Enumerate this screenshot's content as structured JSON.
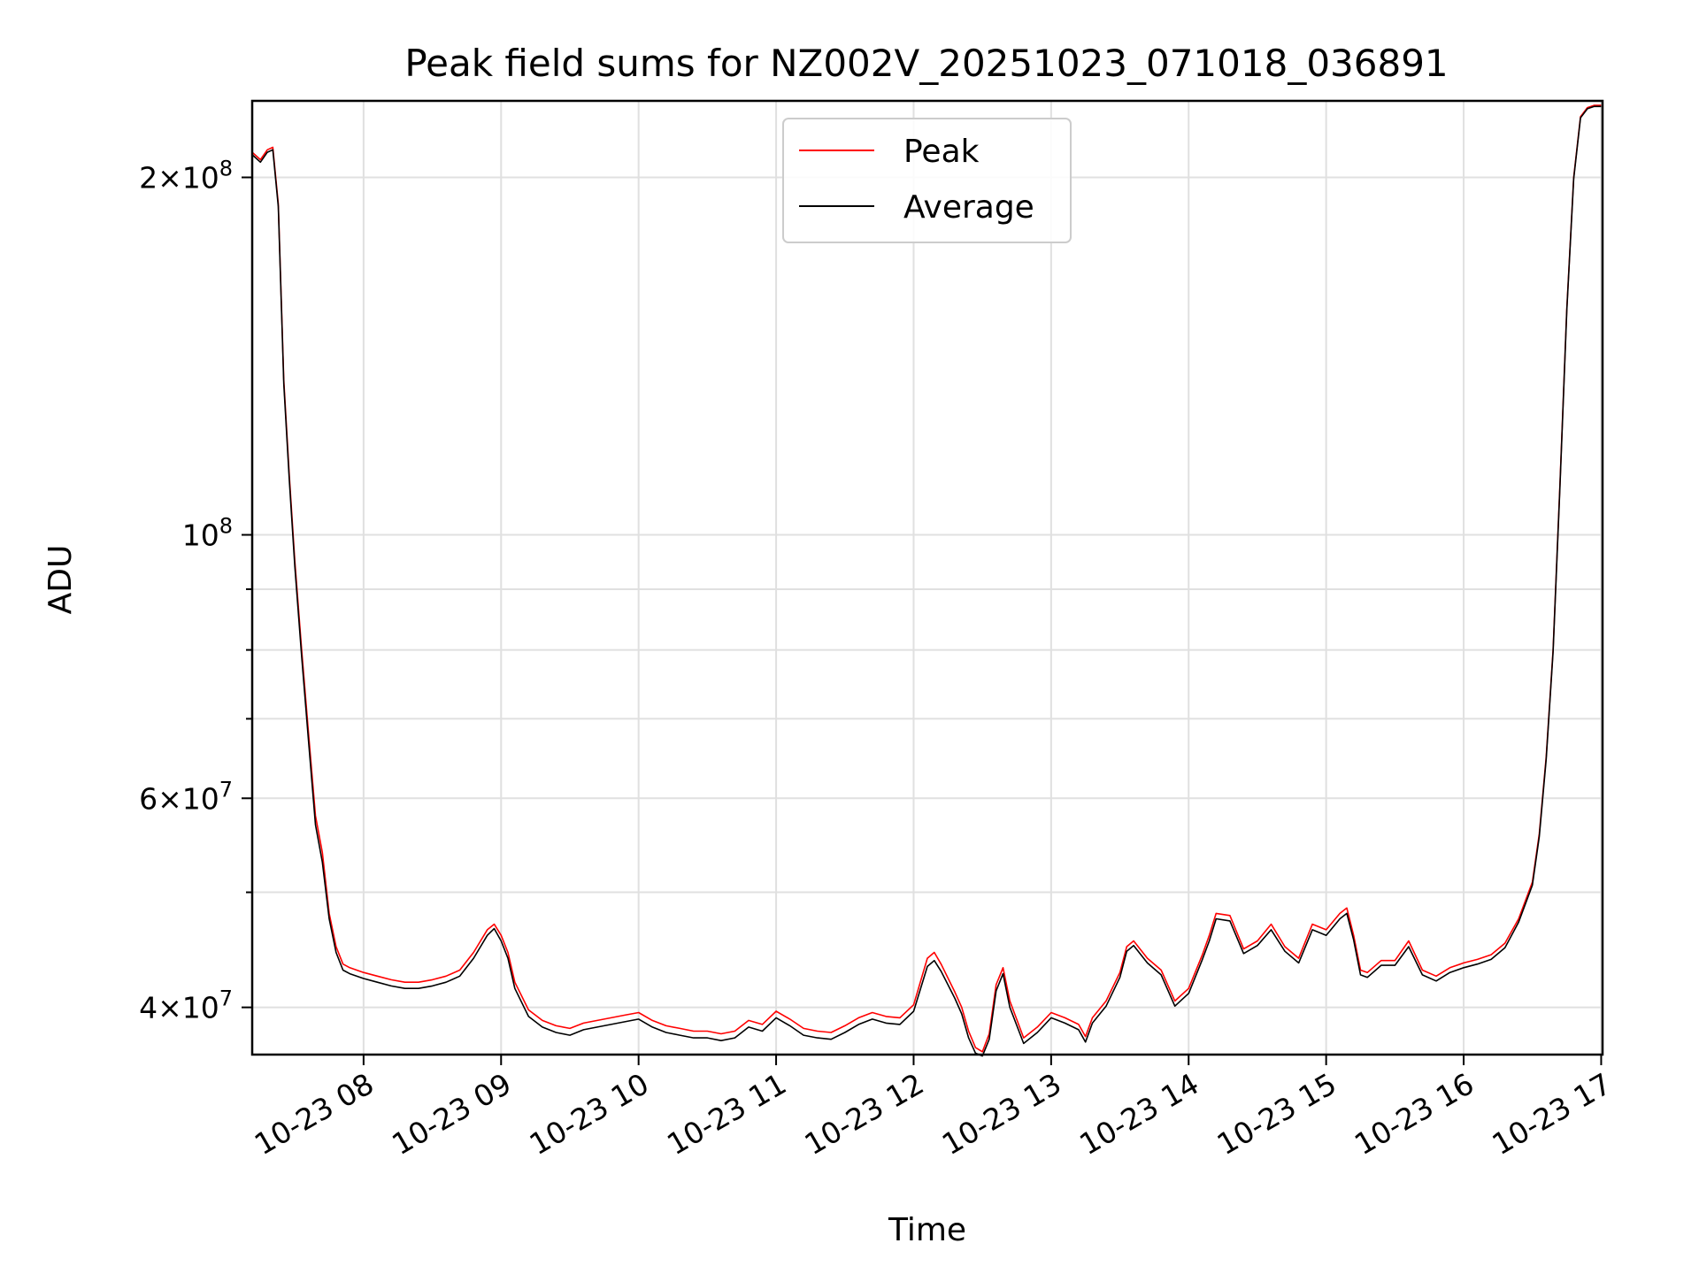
{
  "chart_data": {
    "type": "line",
    "title": "Peak field sums for NZ002V_20251023_071018_036891",
    "xlabel": "Time",
    "ylabel": "ADU",
    "yscale": "log",
    "grid": true,
    "legend_position": "upper-center",
    "xlim": [
      7.19,
      17.01
    ],
    "ylim": [
      36500000,
      232000000
    ],
    "x_ticks": [
      {
        "value": 8,
        "label": "10-23 08"
      },
      {
        "value": 9,
        "label": "10-23 09"
      },
      {
        "value": 10,
        "label": "10-23 10"
      },
      {
        "value": 11,
        "label": "10-23 11"
      },
      {
        "value": 12,
        "label": "10-23 12"
      },
      {
        "value": 13,
        "label": "10-23 13"
      },
      {
        "value": 14,
        "label": "10-23 14"
      },
      {
        "value": 15,
        "label": "10-23 15"
      },
      {
        "value": 16,
        "label": "10-23 16"
      },
      {
        "value": 17,
        "label": "10-23 17"
      }
    ],
    "y_major_ticks": [
      {
        "value": 40000000,
        "mant": "4×10",
        "exp": "7"
      },
      {
        "value": 60000000,
        "mant": "6×10",
        "exp": "7"
      },
      {
        "value": 100000000,
        "mant": "10",
        "exp": "8"
      },
      {
        "value": 200000000,
        "mant": "2×10",
        "exp": "8"
      }
    ],
    "y_minor_ticks": [
      50000000,
      70000000,
      80000000,
      90000000
    ],
    "series": [
      {
        "name": "Peak",
        "color": "#ff0000",
        "x": [
          7.19,
          7.25,
          7.3,
          7.34,
          7.38,
          7.42,
          7.46,
          7.5,
          7.55,
          7.6,
          7.65,
          7.7,
          7.75,
          7.8,
          7.85,
          7.9,
          8.0,
          8.1,
          8.2,
          8.3,
          8.4,
          8.5,
          8.6,
          8.7,
          8.8,
          8.9,
          8.95,
          9.0,
          9.05,
          9.1,
          9.2,
          9.3,
          9.4,
          9.5,
          9.6,
          9.7,
          9.8,
          9.9,
          10.0,
          10.1,
          10.2,
          10.3,
          10.4,
          10.5,
          10.6,
          10.7,
          10.8,
          10.9,
          11.0,
          11.1,
          11.2,
          11.3,
          11.4,
          11.5,
          11.6,
          11.7,
          11.8,
          11.9,
          12.0,
          12.1,
          12.15,
          12.2,
          12.3,
          12.35,
          12.4,
          12.45,
          12.5,
          12.55,
          12.6,
          12.65,
          12.7,
          12.8,
          12.9,
          13.0,
          13.1,
          13.2,
          13.25,
          13.3,
          13.4,
          13.5,
          13.55,
          13.6,
          13.7,
          13.8,
          13.9,
          14.0,
          14.1,
          14.15,
          14.2,
          14.3,
          14.4,
          14.5,
          14.6,
          14.7,
          14.8,
          14.9,
          15.0,
          15.1,
          15.15,
          15.2,
          15.25,
          15.3,
          15.4,
          15.5,
          15.6,
          15.7,
          15.8,
          15.9,
          16.0,
          16.1,
          16.2,
          16.3,
          16.4,
          16.5,
          16.55,
          16.6,
          16.65,
          16.7,
          16.75,
          16.8,
          16.85,
          16.9,
          16.95,
          17.0
        ],
        "y": [
          210000000,
          207000000,
          211000000,
          212000000,
          190000000,
          135000000,
          112000000,
          95000000,
          80000000,
          68000000,
          58000000,
          54000000,
          48000000,
          45000000,
          43500000,
          43200000,
          42800000,
          42500000,
          42200000,
          42000000,
          42000000,
          42200000,
          42500000,
          43000000,
          44500000,
          46500000,
          47000000,
          46000000,
          44500000,
          42000000,
          39800000,
          39000000,
          38600000,
          38400000,
          38800000,
          39000000,
          39200000,
          39400000,
          39600000,
          39000000,
          38600000,
          38400000,
          38200000,
          38200000,
          38000000,
          38200000,
          39000000,
          38700000,
          39700000,
          39100000,
          38400000,
          38200000,
          38100000,
          38600000,
          39200000,
          39600000,
          39300000,
          39200000,
          40200000,
          44000000,
          44500000,
          43500000,
          41200000,
          40000000,
          38200000,
          37000000,
          36700000,
          38000000,
          41800000,
          43200000,
          40500000,
          37700000,
          38500000,
          39600000,
          39200000,
          38700000,
          37800000,
          39200000,
          40500000,
          42800000,
          45000000,
          45500000,
          44000000,
          43000000,
          40500000,
          41500000,
          44300000,
          46000000,
          48000000,
          47800000,
          44800000,
          45500000,
          47000000,
          45000000,
          44000000,
          47000000,
          46500000,
          48000000,
          48500000,
          46000000,
          43000000,
          42800000,
          43800000,
          43800000,
          45500000,
          43000000,
          42500000,
          43200000,
          43600000,
          43900000,
          44300000,
          45300000,
          47500000,
          51000000,
          56000000,
          65000000,
          80000000,
          110000000,
          155000000,
          200000000,
          225000000,
          229000000,
          230000000,
          230000000
        ]
      },
      {
        "name": "Average",
        "color": "#000000",
        "x": [
          7.19,
          7.25,
          7.3,
          7.34,
          7.38,
          7.42,
          7.46,
          7.5,
          7.55,
          7.6,
          7.65,
          7.7,
          7.75,
          7.8,
          7.85,
          7.9,
          8.0,
          8.1,
          8.2,
          8.3,
          8.4,
          8.5,
          8.6,
          8.7,
          8.8,
          8.9,
          8.95,
          9.0,
          9.05,
          9.1,
          9.2,
          9.3,
          9.4,
          9.5,
          9.6,
          9.7,
          9.8,
          9.9,
          10.0,
          10.1,
          10.2,
          10.3,
          10.4,
          10.5,
          10.6,
          10.7,
          10.8,
          10.9,
          11.0,
          11.1,
          11.2,
          11.3,
          11.4,
          11.5,
          11.6,
          11.7,
          11.8,
          11.9,
          12.0,
          12.1,
          12.15,
          12.2,
          12.3,
          12.35,
          12.4,
          12.45,
          12.5,
          12.55,
          12.6,
          12.65,
          12.7,
          12.8,
          12.9,
          13.0,
          13.1,
          13.2,
          13.25,
          13.3,
          13.4,
          13.5,
          13.55,
          13.6,
          13.7,
          13.8,
          13.9,
          14.0,
          14.1,
          14.15,
          14.2,
          14.3,
          14.4,
          14.5,
          14.6,
          14.7,
          14.8,
          14.9,
          15.0,
          15.1,
          15.15,
          15.2,
          15.25,
          15.3,
          15.4,
          15.5,
          15.6,
          15.7,
          15.8,
          15.9,
          16.0,
          16.1,
          16.2,
          16.3,
          16.4,
          16.5,
          16.55,
          16.6,
          16.65,
          16.7,
          16.75,
          16.8,
          16.85,
          16.9,
          16.95,
          17.0
        ],
        "y": [
          209000000,
          206000000,
          210000000,
          211000000,
          189000000,
          134000000,
          111000000,
          94000000,
          79000000,
          67000000,
          57000000,
          53000000,
          47500000,
          44500000,
          43000000,
          42700000,
          42300000,
          42000000,
          41700000,
          41500000,
          41500000,
          41700000,
          42000000,
          42500000,
          44000000,
          46000000,
          46600000,
          45500000,
          44000000,
          41500000,
          39300000,
          38500000,
          38100000,
          37900000,
          38300000,
          38500000,
          38700000,
          38900000,
          39100000,
          38500000,
          38100000,
          37900000,
          37700000,
          37700000,
          37500000,
          37700000,
          38500000,
          38200000,
          39200000,
          38600000,
          37900000,
          37700000,
          37600000,
          38100000,
          38700000,
          39100000,
          38800000,
          38700000,
          39700000,
          43300000,
          43800000,
          42900000,
          40700000,
          39500000,
          37700000,
          36600000,
          36400000,
          37600000,
          41300000,
          42700000,
          40000000,
          37300000,
          38100000,
          39200000,
          38800000,
          38300000,
          37400000,
          38800000,
          40100000,
          42400000,
          44600000,
          45100000,
          43600000,
          42600000,
          40100000,
          41100000,
          43900000,
          45500000,
          47500000,
          47300000,
          44400000,
          45100000,
          46500000,
          44600000,
          43600000,
          46500000,
          46000000,
          47500000,
          48000000,
          45600000,
          42600000,
          42400000,
          43400000,
          43400000,
          45000000,
          42600000,
          42100000,
          42800000,
          43200000,
          43500000,
          43900000,
          44900000,
          47200000,
          50700000,
          55700000,
          64700000,
          79700000,
          109500000,
          154500000,
          199500000,
          224500000,
          228500000,
          229500000,
          229500000
        ]
      }
    ]
  }
}
